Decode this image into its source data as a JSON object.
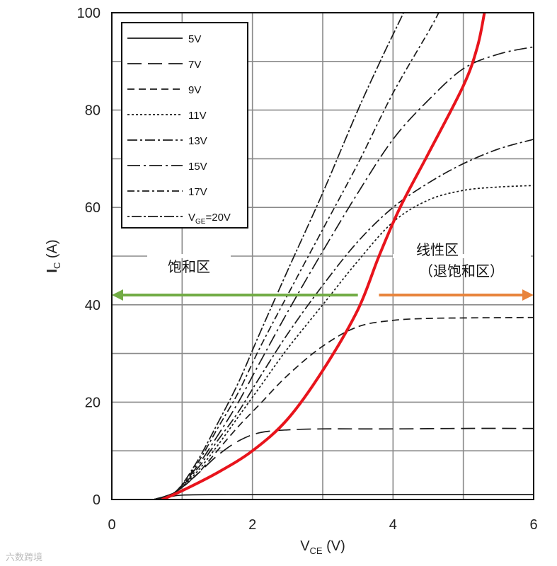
{
  "chart_data": {
    "type": "line",
    "xlabel": "V",
    "xlabel_sub": "CE",
    "xlabel_unit": " (V)",
    "ylabel": "I",
    "ylabel_sub": "C",
    "ylabel_unit": " (A)",
    "xlim": [
      0,
      6
    ],
    "ylim": [
      0,
      100
    ],
    "x_ticks": [
      0,
      2,
      4,
      6
    ],
    "y_ticks": [
      0,
      20,
      40,
      60,
      80,
      100
    ],
    "x_grid": [
      1,
      2,
      3,
      4,
      5
    ],
    "y_grid": [
      10,
      20,
      30,
      40,
      50,
      60,
      70,
      80,
      90
    ],
    "grid": true,
    "legend_position": "top-left",
    "series": [
      {
        "name": "5V",
        "dash": "",
        "points": [
          [
            0.6,
            0
          ],
          [
            0.8,
            0.5
          ],
          [
            1.0,
            0.9
          ],
          [
            1.5,
            1.0
          ],
          [
            2.0,
            1.0
          ],
          [
            3.0,
            1.0
          ],
          [
            4.0,
            1.0
          ],
          [
            5.0,
            1.0
          ],
          [
            6.0,
            1.0
          ]
        ]
      },
      {
        "name": "7V",
        "dash": "20,9",
        "points": [
          [
            0.6,
            0
          ],
          [
            0.9,
            1.5
          ],
          [
            1.2,
            5
          ],
          [
            1.5,
            9
          ],
          [
            1.8,
            12
          ],
          [
            2.1,
            13.7
          ],
          [
            2.5,
            14.3
          ],
          [
            3.0,
            14.5
          ],
          [
            4.0,
            14.5
          ],
          [
            5.0,
            14.6
          ],
          [
            6.0,
            14.6
          ]
        ]
      },
      {
        "name": "9V",
        "dash": "10,6",
        "points": [
          [
            0.6,
            0
          ],
          [
            0.9,
            1.5
          ],
          [
            1.2,
            5
          ],
          [
            1.5,
            10
          ],
          [
            1.8,
            15
          ],
          [
            2.1,
            19.5
          ],
          [
            2.5,
            25.5
          ],
          [
            3.0,
            31.5
          ],
          [
            3.5,
            35.5
          ],
          [
            4.0,
            36.8
          ],
          [
            4.5,
            37.2
          ],
          [
            5.0,
            37.3
          ],
          [
            6.0,
            37.4
          ]
        ]
      },
      {
        "name": "11V",
        "dash": "3,3",
        "points": [
          [
            0.6,
            0
          ],
          [
            0.9,
            1.5
          ],
          [
            1.2,
            5.5
          ],
          [
            1.5,
            11
          ],
          [
            1.8,
            17
          ],
          [
            2.1,
            23
          ],
          [
            2.5,
            31
          ],
          [
            3.0,
            40
          ],
          [
            3.5,
            49
          ],
          [
            4.0,
            57
          ],
          [
            4.5,
            61.5
          ],
          [
            5.0,
            63.5
          ],
          [
            5.5,
            64.2
          ],
          [
            6.0,
            64.5
          ]
        ]
      },
      {
        "name": "13V",
        "dash": "14,4,3,4",
        "points": [
          [
            0.6,
            0
          ],
          [
            0.9,
            1.5
          ],
          [
            1.2,
            6
          ],
          [
            1.5,
            12
          ],
          [
            1.8,
            18
          ],
          [
            2.1,
            25
          ],
          [
            2.5,
            34
          ],
          [
            3.0,
            44
          ],
          [
            3.5,
            53
          ],
          [
            4.0,
            60
          ],
          [
            4.5,
            65
          ],
          [
            5.0,
            69
          ],
          [
            5.5,
            72
          ],
          [
            6.0,
            74
          ]
        ]
      },
      {
        "name": "15V",
        "dash": "18,5,3,5",
        "points": [
          [
            0.6,
            0
          ],
          [
            0.9,
            1.5
          ],
          [
            1.2,
            6.5
          ],
          [
            1.5,
            13
          ],
          [
            1.8,
            20
          ],
          [
            2.1,
            28
          ],
          [
            2.5,
            38.5
          ],
          [
            3.0,
            51
          ],
          [
            3.5,
            63
          ],
          [
            4.0,
            74
          ],
          [
            4.5,
            82
          ],
          [
            5.0,
            88.5
          ],
          [
            5.5,
            91.5
          ],
          [
            6.0,
            93
          ]
        ]
      },
      {
        "name": "17V",
        "dash": "10,4,3,4",
        "points": [
          [
            0.6,
            0
          ],
          [
            0.9,
            1.5
          ],
          [
            1.2,
            7
          ],
          [
            1.5,
            14.5
          ],
          [
            1.8,
            22
          ],
          [
            2.1,
            31
          ],
          [
            2.5,
            42
          ],
          [
            3.0,
            55.5
          ],
          [
            3.5,
            69
          ],
          [
            4.0,
            83.5
          ],
          [
            4.5,
            96
          ],
          [
            4.65,
            100
          ]
        ]
      },
      {
        "name": "V",
        "name_sub": "GE",
        "name_suffix": "=20V",
        "dash": "3,3,14,3",
        "points": [
          [
            0.6,
            0
          ],
          [
            0.9,
            1.5
          ],
          [
            1.2,
            7.5
          ],
          [
            1.5,
            15.5
          ],
          [
            1.8,
            24
          ],
          [
            2.1,
            34
          ],
          [
            2.5,
            47
          ],
          [
            3.0,
            63
          ],
          [
            3.5,
            80
          ],
          [
            3.85,
            91
          ],
          [
            4.0,
            95.5
          ],
          [
            4.15,
            100
          ]
        ]
      }
    ],
    "boundary_curve": {
      "color": "#e8141c",
      "points": [
        [
          0.72,
          0
        ],
        [
          1.0,
          1.8
        ],
        [
          1.5,
          5.5
        ],
        [
          2.0,
          10
        ],
        [
          2.5,
          16.5
        ],
        [
          3.0,
          26.5
        ],
        [
          3.5,
          39
        ],
        [
          3.8,
          50
        ],
        [
          4.1,
          60
        ],
        [
          4.5,
          71
        ],
        [
          5.0,
          85
        ],
        [
          5.2,
          93
        ],
        [
          5.3,
          100
        ]
      ]
    },
    "annotations": {
      "saturation": {
        "label": "饱和区",
        "color": "#72ac45",
        "arrow_from": 3.5,
        "arrow_to": 0,
        "y": 42
      },
      "linear": {
        "label": "线性区",
        "label2": "（退饱和区）",
        "color": "#e8843c",
        "arrow_from": 3.8,
        "arrow_to": 6,
        "y": 42
      }
    }
  },
  "watermark": "六数跨境"
}
